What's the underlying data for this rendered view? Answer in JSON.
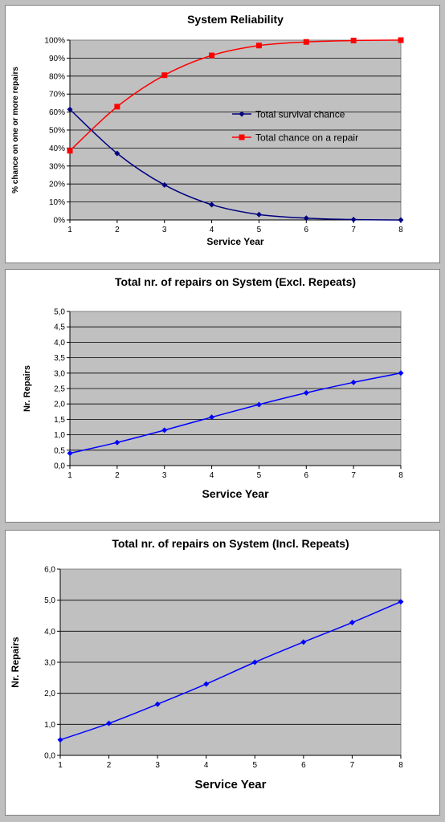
{
  "chart_data": [
    {
      "type": "line",
      "title": "System Reliability",
      "xlabel": "Service Year",
      "ylabel": "% chance on one or more repairs",
      "x": [
        1,
        2,
        3,
        4,
        5,
        6,
        7,
        8
      ],
      "xticks": [
        "1",
        "2",
        "3",
        "4",
        "5",
        "6",
        "7",
        "8"
      ],
      "ylim": [
        0,
        100
      ],
      "yticks": [
        "0%",
        "10%",
        "20%",
        "30%",
        "40%",
        "50%",
        "60%",
        "70%",
        "80%",
        "90%",
        "100%"
      ],
      "grid": true,
      "legend_position": "center-right",
      "plot_background": "#c0c0c0",
      "series": [
        {
          "name": "Total survival chance",
          "color": "#000080",
          "marker": "diamond",
          "values": [
            61.5,
            37,
            19.5,
            8.5,
            3,
            1,
            0.2,
            0
          ]
        },
        {
          "name": "Total chance on a repair",
          "color": "#ff0000",
          "marker": "square",
          "values": [
            38.5,
            63,
            80.5,
            91.5,
            97,
            99,
            99.8,
            100
          ]
        }
      ]
    },
    {
      "type": "line",
      "title": "Total nr. of repairs on System (Excl. Repeats)",
      "xlabel": "Service Year",
      "ylabel": "Nr. Repairs",
      "x": [
        1,
        2,
        3,
        4,
        5,
        6,
        7,
        8
      ],
      "xticks": [
        "1",
        "2",
        "3",
        "4",
        "5",
        "6",
        "7",
        "8"
      ],
      "ylim": [
        0,
        5
      ],
      "yticks": [
        "0,0",
        "0,5",
        "1,0",
        "1,5",
        "2,0",
        "2,5",
        "3,0",
        "3,5",
        "4,0",
        "4,5",
        "5,0"
      ],
      "grid": true,
      "plot_background": "#c0c0c0",
      "series": [
        {
          "color": "#0000ff",
          "marker": "diamond",
          "values": [
            0.4,
            0.75,
            1.15,
            1.57,
            1.98,
            2.36,
            2.7,
            3.0
          ]
        }
      ]
    },
    {
      "type": "line",
      "title": "Total nr. of repairs on System (Incl. Repeats)",
      "xlabel": "Service Year",
      "ylabel": "Nr. Repairs",
      "x": [
        1,
        2,
        3,
        4,
        5,
        6,
        7,
        8
      ],
      "xticks": [
        "1",
        "2",
        "3",
        "4",
        "5",
        "6",
        "7",
        "8"
      ],
      "ylim": [
        0,
        6
      ],
      "yticks": [
        "0,0",
        "1,0",
        "2,0",
        "3,0",
        "4,0",
        "5,0",
        "6,0"
      ],
      "grid": true,
      "plot_background": "#c0c0c0",
      "series": [
        {
          "color": "#0000ff",
          "marker": "diamond",
          "values": [
            0.5,
            1.03,
            1.65,
            2.3,
            3.0,
            3.65,
            4.28,
            4.95
          ]
        }
      ]
    }
  ]
}
